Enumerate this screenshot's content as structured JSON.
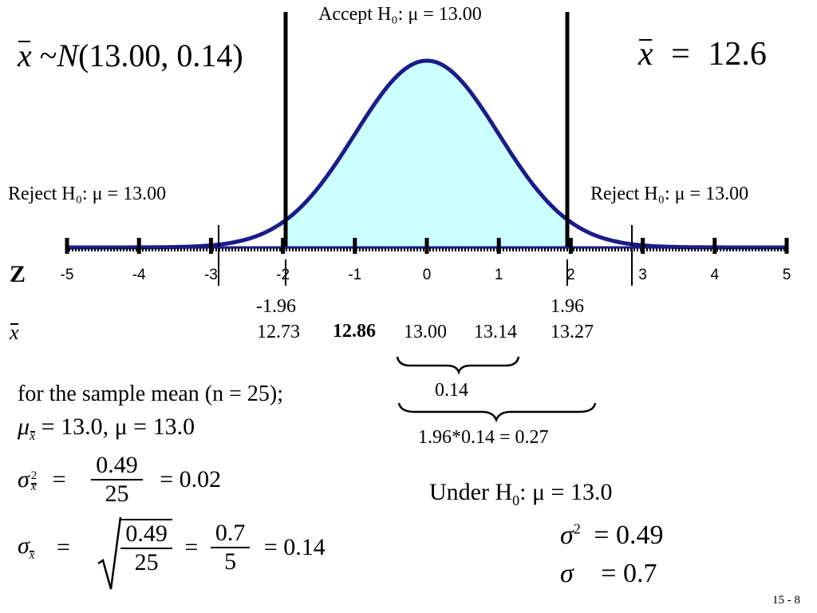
{
  "diagram": {
    "accept_label": "Accept H₀: μ = 13.00",
    "reject_left_label": "Reject H₀: μ = 13.00",
    "reject_right_label": "Reject H₀: μ = 13.00",
    "distribution_label": "x̄ ~ N(13.00, 0.14)",
    "dist_parts": {
      "tilde": "~",
      "N": "N",
      "args": "(13.00, 0.14)"
    },
    "observed_mean": {
      "sym": "x",
      "eq": "=",
      "value": "12.6"
    },
    "z_axis": {
      "row_label": "Z",
      "ticks": [
        "-5",
        "-4",
        "-3",
        "-2",
        "-1",
        "0",
        "1",
        "2",
        "3",
        "4",
        "5"
      ],
      "range": [
        -5,
        5
      ],
      "critical_values": [
        -1.96,
        1.96
      ]
    },
    "critical_labels": {
      "left_z": "-1.96",
      "right_z": "1.96"
    },
    "xbar_row": {
      "label": "x",
      "values": [
        "12.73",
        "12.86",
        "13.00",
        "13.14",
        "13.27"
      ]
    },
    "brace_small_label": "0.14",
    "brace_large_label": "1.96*0.14 = 0.27",
    "colors": {
      "curve": "#1b1b8a",
      "fill": "#ccffff",
      "lines": "#000000"
    }
  },
  "formulas": {
    "sample_note": "for the sample mean (n = 25);",
    "mu_line": {
      "sym": "μ",
      "sub": "x",
      "rest": "= 13.0,  μ = 13.0"
    },
    "variance": {
      "sym": "σ",
      "sub": "x",
      "sup": "2",
      "eq": "=",
      "num": "0.49",
      "den": "25",
      "result": "= 0.02"
    },
    "sd": {
      "sym": "σ",
      "sub": "x",
      "eq": "=",
      "num1": "0.49",
      "den1": "25",
      "eq2": "=",
      "num2": "0.7",
      "den2": "5",
      "result": "= 0.14"
    }
  },
  "null_hypothesis": {
    "under_label": "Under H",
    "under_sub": "0",
    "mu_line": ":  μ  =  13.0",
    "var_sym": "σ",
    "var_sup": "2",
    "var_eq": "=  0.49",
    "sd_sym": "σ",
    "sd_eq": "=  0.7"
  },
  "page_number": "15 -  8"
}
